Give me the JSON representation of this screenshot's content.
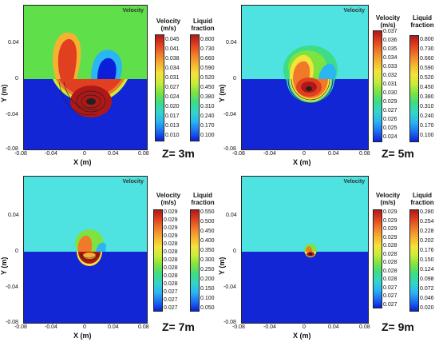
{
  "colors": {
    "jet": [
      "#0c1fd8",
      "#1e6ff0",
      "#2ab6f2",
      "#33d6c8",
      "#3ddc86",
      "#7ee340",
      "#c8ec3a",
      "#f4e33a",
      "#f5b230",
      "#f07a2a",
      "#e04020",
      "#b01818"
    ],
    "cyan_bg": "#4ee3e0",
    "green_bg": "#5fe04a",
    "blue_bg": "#1226d6"
  },
  "panels": [
    {
      "z_label": "Z= 3m",
      "velocity_tag": "Velocity",
      "x_axis": "X (m)",
      "y_axis": "Y (m)",
      "x_ticks": [
        "-0.08",
        "-0.04",
        "0",
        "0.04",
        "0.08"
      ],
      "y_ticks": [
        "0.04",
        "0",
        "-0.04",
        "-0.08"
      ],
      "velocity_title": "Velocity\n(m/s)",
      "fraction_title": "Liquid\nfraction",
      "velocity_levels": [
        "0.045",
        "0.041",
        "0.038",
        "0.034",
        "0.031",
        "0.027",
        "0.024",
        "0.020",
        "0.017",
        "0.013",
        "0.010"
      ],
      "fraction_levels": [
        "0.800",
        "0.730",
        "0.660",
        "0.590",
        "0.520",
        "0.450",
        "0.380",
        "0.310",
        "0.240",
        "0.170",
        "0.100"
      ],
      "upper_bg": "green"
    },
    {
      "z_label": "Z= 5m",
      "velocity_tag": "Velocity",
      "x_axis": "X (m)",
      "y_axis": "Y (m)",
      "x_ticks": [
        "-0.08",
        "-0.04",
        "0",
        "0.04",
        "0.08"
      ],
      "y_ticks": [
        "0.04",
        "0",
        "-0.04",
        "-0.08"
      ],
      "velocity_title": "Velocity\n(m/s)",
      "fraction_title": "Liquid\nfraction",
      "velocity_levels": [
        "0.037",
        "0.036",
        "0.035",
        "0.034",
        "0.033",
        "0.032",
        "0.031",
        "0.030",
        "0.029",
        "0.027",
        "0.026",
        "0.025",
        "0.024"
      ],
      "fraction_levels": [
        "0.800",
        "0.730",
        "0.660",
        "0.590",
        "0.520",
        "0.450",
        "0.380",
        "0.310",
        "0.240",
        "0.170",
        "0.100"
      ],
      "upper_bg": "cyan"
    },
    {
      "z_label": "Z= 7m",
      "velocity_tag": "Velocity",
      "x_axis": "X (m)",
      "y_axis": "Y (m)",
      "x_ticks": [
        "-0.08",
        "-0.04",
        "0",
        "0.04",
        "0.08"
      ],
      "y_ticks": [
        "0.04",
        "0",
        "-0.04",
        "-0.08"
      ],
      "velocity_title": "Velocity\n(m/s)",
      "fraction_title": "Liquid\nfraction",
      "velocity_levels": [
        "0.029",
        "0.029",
        "0.029",
        "0.029",
        "0.028",
        "0.028",
        "0.028",
        "0.028",
        "0.028",
        "0.028",
        "0.027",
        "0.027",
        "0.027"
      ],
      "fraction_levels": [
        "0.550",
        "0.500",
        "0.450",
        "0.400",
        "0.350",
        "0.300",
        "0.250",
        "0.200",
        "0.150",
        "0.100",
        "0.050"
      ],
      "upper_bg": "cyan"
    },
    {
      "z_label": "Z= 9m",
      "velocity_tag": "Velocity",
      "x_axis": "X (m)",
      "y_axis": "Y (m)",
      "x_ticks": [
        "-0.08",
        "-0.04",
        "0",
        "0.04",
        "0.08"
      ],
      "y_ticks": [
        "0.04",
        "0",
        "-0.04",
        "-0.08"
      ],
      "velocity_title": "Velocity\n(m/s)",
      "fraction_title": "Liquid\nfraction",
      "velocity_levels": [
        "0.029",
        "0.029",
        "0.029",
        "0.029",
        "0.028",
        "0.028",
        "0.028",
        "0.028",
        "0.028",
        "0.027",
        "0.027",
        "0.027"
      ],
      "fraction_levels": [
        "0.280",
        "0.254",
        "0.228",
        "0.202",
        "0.176",
        "0.150",
        "0.124",
        "0.098",
        "0.072",
        "0.046",
        "0.020"
      ],
      "upper_bg": "cyan"
    }
  ]
}
